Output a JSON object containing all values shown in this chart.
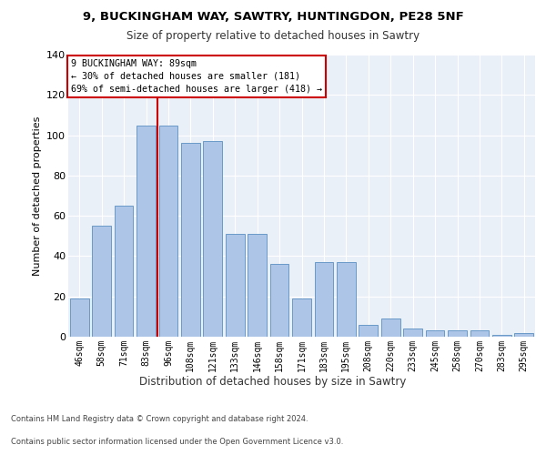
{
  "title1": "9, BUCKINGHAM WAY, SAWTRY, HUNTINGDON, PE28 5NF",
  "title2": "Size of property relative to detached houses in Sawtry",
  "xlabel": "Distribution of detached houses by size in Sawtry",
  "ylabel": "Number of detached properties",
  "categories": [
    "46sqm",
    "58sqm",
    "71sqm",
    "83sqm",
    "96sqm",
    "108sqm",
    "121sqm",
    "133sqm",
    "146sqm",
    "158sqm",
    "171sqm",
    "183sqm",
    "195sqm",
    "208sqm",
    "220sqm",
    "233sqm",
    "245sqm",
    "258sqm",
    "270sqm",
    "283sqm",
    "295sqm"
  ],
  "values": [
    19,
    55,
    65,
    105,
    105,
    96,
    97,
    51,
    51,
    36,
    19,
    37,
    37,
    6,
    9,
    4,
    3,
    3,
    3,
    1,
    2
  ],
  "bar_color": "#adc6e8",
  "bar_edge_color": "#5a8fc2",
  "vline_x_index": 3,
  "vline_color": "#cc0000",
  "annotation_line1": "9 BUCKINGHAM WAY: 89sqm",
  "annotation_line2": "← 30% of detached houses are smaller (181)",
  "annotation_line3": "69% of semi-detached houses are larger (418) →",
  "annotation_box_color": "#ffffff",
  "annotation_box_edge": "#cc0000",
  "ylim": [
    0,
    140
  ],
  "yticks": [
    0,
    20,
    40,
    60,
    80,
    100,
    120,
    140
  ],
  "bg_color": "#eaf0f8",
  "footnote1": "Contains HM Land Registry data © Crown copyright and database right 2024.",
  "footnote2": "Contains public sector information licensed under the Open Government Licence v3.0."
}
